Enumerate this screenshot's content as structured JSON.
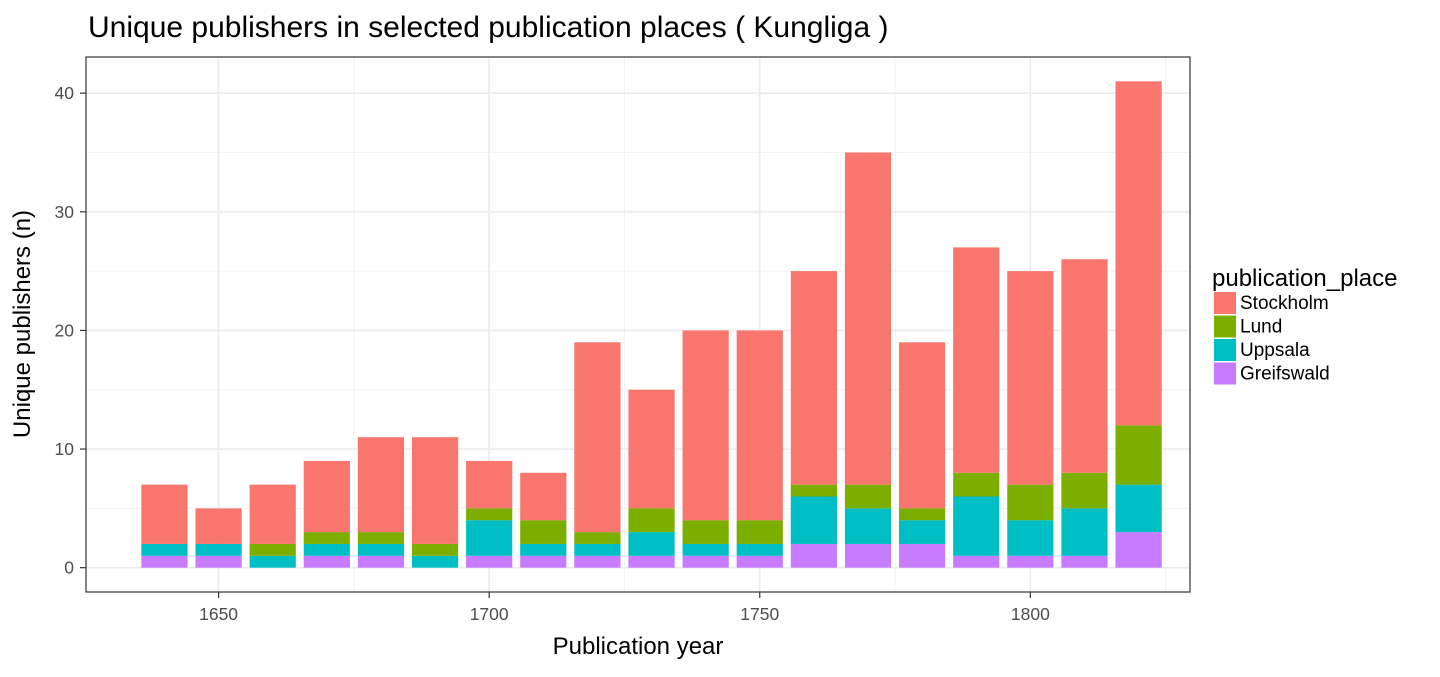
{
  "chart_data": {
    "type": "bar",
    "stacked": true,
    "title": "Unique publishers in selected publication places ( Kungliga )",
    "xlabel": "Publication year",
    "ylabel": "Unique publishers (n)",
    "xlim": [
      1625.5,
      1829.5
    ],
    "ylim": [
      -2.05,
      43.05
    ],
    "x_ticks": [
      1650,
      1700,
      1750,
      1800
    ],
    "y_ticks": [
      0,
      10,
      20,
      30,
      40
    ],
    "bar_width": 9,
    "grid": true,
    "legend": {
      "title": "publication_place",
      "position": "right"
    },
    "x": [
      1640,
      1650,
      1660,
      1670,
      1680,
      1690,
      1700,
      1710,
      1720,
      1730,
      1740,
      1750,
      1760,
      1770,
      1780,
      1790,
      1800,
      1810,
      1820
    ],
    "series": [
      {
        "name": "Greifswald",
        "color": "#C77CFF",
        "values": [
          1,
          1,
          0,
          1,
          1,
          0,
          1,
          1,
          1,
          1,
          1,
          1,
          2,
          2,
          2,
          1,
          1,
          1,
          3
        ]
      },
      {
        "name": "Uppsala",
        "color": "#00BFC4",
        "values": [
          1,
          1,
          1,
          1,
          1,
          1,
          3,
          1,
          1,
          2,
          1,
          1,
          4,
          3,
          2,
          5,
          3,
          4,
          4
        ]
      },
      {
        "name": "Lund",
        "color": "#7CAE00",
        "values": [
          0,
          0,
          1,
          1,
          1,
          1,
          1,
          2,
          1,
          2,
          2,
          2,
          1,
          2,
          1,
          2,
          3,
          3,
          5
        ]
      },
      {
        "name": "Stockholm",
        "color": "#F8766D",
        "values": [
          5,
          3,
          5,
          6,
          8,
          9,
          4,
          4,
          16,
          10,
          16,
          16,
          18,
          28,
          14,
          19,
          18,
          18,
          29
        ]
      }
    ],
    "legend_order": [
      "Stockholm",
      "Lund",
      "Uppsala",
      "Greifswald"
    ]
  }
}
